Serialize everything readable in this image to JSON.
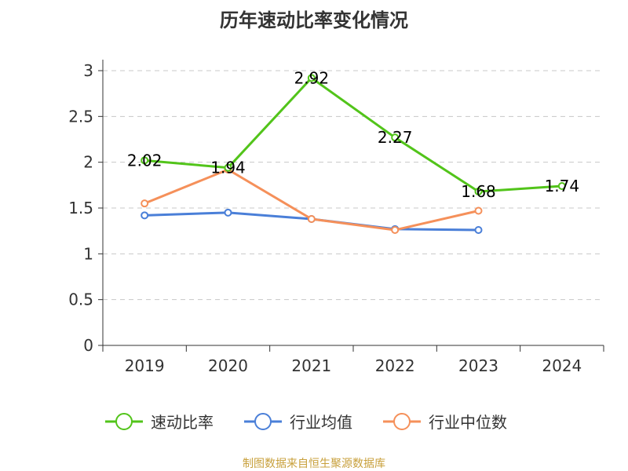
{
  "chart_data": {
    "type": "line",
    "title": "历年速动比率变化情况",
    "categories": [
      "2019",
      "2020",
      "2021",
      "2022",
      "2023",
      "2024"
    ],
    "y_ticks": [
      "0",
      "0.5",
      "1",
      "1.5",
      "2",
      "2.5",
      "3"
    ],
    "ylim": [
      0,
      3
    ],
    "grid": true,
    "legend_position": "bottom",
    "series": [
      {
        "name": "速动比率",
        "color": "#52c41a",
        "values": [
          2.02,
          1.94,
          2.92,
          2.27,
          1.68,
          1.74
        ],
        "labels": [
          "2.02",
          "1.94",
          "2.92",
          "2.27",
          "1.68",
          "1.74"
        ]
      },
      {
        "name": "行业均值",
        "color": "#4a7fd8",
        "values": [
          1.42,
          1.45,
          1.38,
          1.27,
          1.26,
          null
        ]
      },
      {
        "name": "行业中位数",
        "color": "#f5905a",
        "values": [
          1.55,
          1.92,
          1.38,
          1.26,
          1.47,
          null
        ]
      }
    ],
    "source": "制图数据来自恒生聚源数据库"
  }
}
